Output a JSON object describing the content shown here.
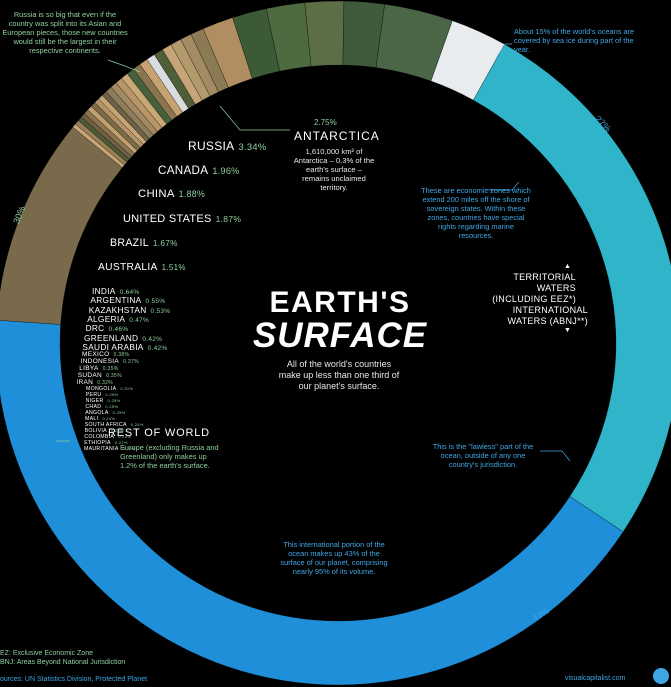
{
  "chart_data": {
    "type": "donut",
    "title": "EARTH'S",
    "title_emphasis": "SURFACE",
    "subtitle": "All of the world's countries make up less than one third of our planet's surface.",
    "slices": [
      {
        "label": "ANTARCTICA",
        "value": 2.75,
        "value_text": "2.75%",
        "color": "#e9ecee"
      },
      {
        "label": "TERRITORIAL WATERS (INCLUDING EEZ*)",
        "value": 27,
        "value_text": "27%",
        "color": "#2fb4c9"
      },
      {
        "label": "INTERNATIONAL WATERS (ABNJ**)",
        "value": 43,
        "value_text": "43%",
        "color": "#1e8fd8"
      },
      {
        "label": "RUSSIA",
        "value": 3.34,
        "value_text": "3.34%",
        "color": "#4a6647"
      },
      {
        "label": "CANADA",
        "value": 1.96,
        "value_text": "1.96%",
        "color": "#3f5a3c"
      },
      {
        "label": "CHINA",
        "value": 1.88,
        "value_text": "1.88%",
        "color": "#5b6e45"
      },
      {
        "label": "UNITED STATES",
        "value": 1.87,
        "value_text": "1.87%",
        "color": "#4e6a40"
      },
      {
        "label": "BRAZIL",
        "value": 1.67,
        "value_text": "1.67%",
        "color": "#3d5a36"
      },
      {
        "label": "AUSTRALIA",
        "value": 1.51,
        "value_text": "1.51%",
        "color": "#b08e62"
      },
      {
        "label": "INDIA",
        "value": 0.64,
        "value_text": "0.64%",
        "color": "#8c7a55"
      },
      {
        "label": "ARGENTINA",
        "value": 0.55,
        "value_text": "0.55%",
        "color": "#a38c63"
      },
      {
        "label": "KAZAKHSTAN",
        "value": 0.53,
        "value_text": "0.53%",
        "color": "#b29a6d"
      },
      {
        "label": "ALGERIA",
        "value": 0.47,
        "value_text": "0.47%",
        "color": "#c6a679"
      },
      {
        "label": "DRC",
        "value": 0.46,
        "value_text": "0.46%",
        "color": "#4e5e38"
      },
      {
        "label": "GREENLAND",
        "value": 0.42,
        "value_text": "0.42%",
        "color": "#d9dcdf"
      },
      {
        "label": "SAUDI ARABIA",
        "value": 0.42,
        "value_text": "0.42%",
        "color": "#c8a170"
      },
      {
        "label": "MEXICO",
        "value": 0.38,
        "value_text": "0.38%",
        "color": "#8a7550"
      },
      {
        "label": "INDONESIA",
        "value": 0.37,
        "value_text": "0.37%",
        "color": "#45603a"
      },
      {
        "label": "LIBYA",
        "value": 0.35,
        "value_text": "0.35%",
        "color": "#c9a877"
      },
      {
        "label": "SUDAN",
        "value": 0.35,
        "value_text": "0.35%",
        "color": "#b89668"
      },
      {
        "label": "IRAN",
        "value": 0.32,
        "value_text": "0.32%",
        "color": "#a38a66"
      },
      {
        "label": "MONGOLIA",
        "value": 0.31,
        "value_text": "0.31%",
        "color": "#8d7d5a"
      },
      {
        "label": "PERU",
        "value": 0.25,
        "value_text": "0.25%",
        "color": "#6d6248"
      },
      {
        "label": "NIGER",
        "value": 0.25,
        "value_text": "0.25%",
        "color": "#c7a676"
      },
      {
        "label": "CHAD",
        "value": 0.25,
        "value_text": "0.25%",
        "color": "#b59568"
      },
      {
        "label": "ANGOLA",
        "value": 0.25,
        "value_text": "0.25%",
        "color": "#7b6a47"
      },
      {
        "label": "MALI",
        "value": 0.24,
        "value_text": "0.24%",
        "color": "#c3a070"
      },
      {
        "label": "SOUTH AFRICA",
        "value": 0.24,
        "value_text": "0.24%",
        "color": "#8a7550"
      },
      {
        "label": "BOLIVIA",
        "value": 0.22,
        "value_text": "0.22%",
        "color": "#705f43"
      },
      {
        "label": "COLOMBIA",
        "value": 0.22,
        "value_text": "0.22%",
        "color": "#4c5a36"
      },
      {
        "label": "ETHIOPIA",
        "value": 0.22,
        "value_text": "0.22%",
        "color": "#9a7f57"
      },
      {
        "label": "MAURITANIA",
        "value": 0.2,
        "value_text": "0.20%",
        "color": "#caa676"
      },
      {
        "label": "REST OF WORLD",
        "value": 10.1,
        "value_text": "",
        "color": "#7a6a4c"
      }
    ],
    "ring_labels": [
      "30%",
      "27%",
      "43%"
    ]
  },
  "texts": {
    "russia_note": "Russia is so big that even if the country was split into its Asian and European pieces, those new countries would still be the largest in their respective continents.",
    "seaice_note": "About 15% of the world's oceans are covered by sea ice during part of the year.",
    "antarctica_pct": "2.75%",
    "antarctica_label": "ANTARCTICA",
    "antarctica_note": "1,610,000 km² of Antarctica – 0.3% of the earth's surface – remains unclaimed territory.",
    "eez_note": "These are economic zones which extend 200 miles off the shore of sovereign states. Within these zones, countries have special rights regarding marine resources.",
    "territorial_label": "TERRITORIAL WATERS (INCLUDING EEZ*)",
    "international_label": "INTERNATIONAL WATERS (ABNJ**)",
    "lawless_note": "This is the \"lawless\" part of the ocean, outside of any one country's jurisdiction.",
    "rest_label": "REST OF WORLD",
    "rest_note": "Europe (excluding Russia and Greenland) only makes up 1.2% of the earth's surface.",
    "intl_note": "This international portion of the ocean makes up 43% of the surface of our planet, comprising nearly 95% of its volume.",
    "foot_eez": "EZ: Exclusive Economic Zone",
    "foot_abnj": "BNJ: Areas Beyond National Jurisdiction",
    "foot_sources": "ources: UN Statistics Division, Protected Planet",
    "brand": "visualcapitalist.com"
  }
}
